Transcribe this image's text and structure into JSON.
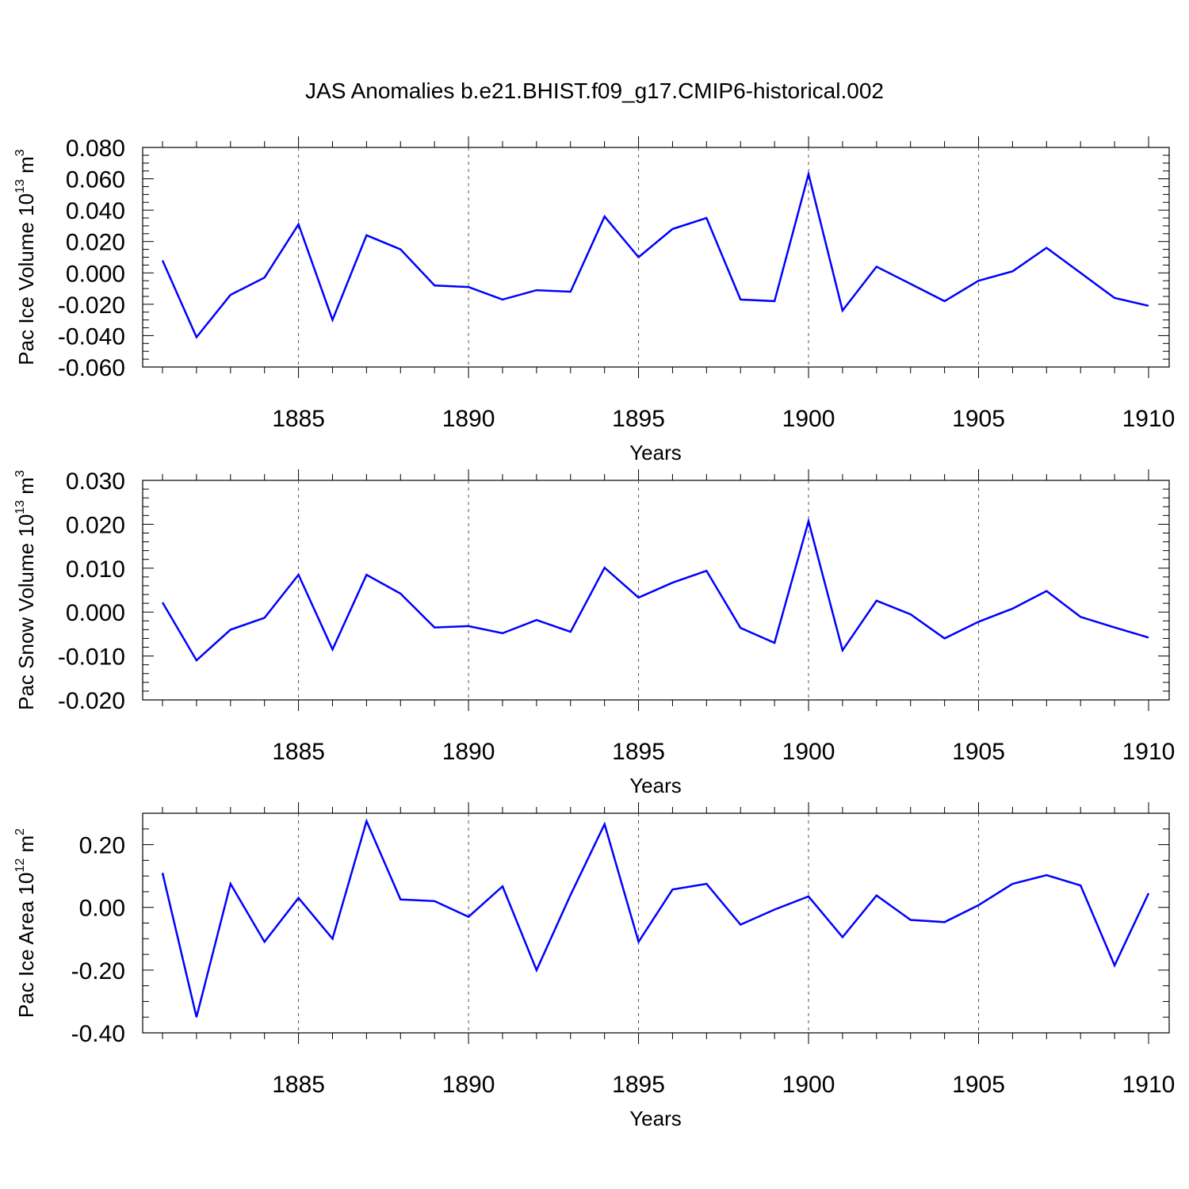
{
  "figure": {
    "title": "JAS Anomalies b.e21.BHIST.f09_g17.CMIP6-historical.002",
    "line_color": "#0000ff",
    "grid_color": "#555555"
  },
  "chart_data": [
    {
      "type": "line",
      "title": "JAS Anomalies b.e21.BHIST.f09_g17.CMIP6-historical.002",
      "xlabel": "Years",
      "ylabel": {
        "main": "Pac Ice Volume 10",
        "exp": "13",
        "unit": " m",
        "unit_exp": "3"
      },
      "xlim": [
        1881,
        1910
      ],
      "ylim": [
        -0.06,
        0.08
      ],
      "y_ticks": [
        -0.06,
        -0.04,
        -0.02,
        0.0,
        0.02,
        0.04,
        0.06,
        0.08
      ],
      "y_tick_labels": [
        "-0.060",
        "-0.040",
        "-0.020",
        "0.000",
        "0.020",
        "0.040",
        "0.060",
        "0.080"
      ],
      "y_minor_step": 0.005,
      "x_ticks": [
        1885,
        1890,
        1895,
        1900,
        1905,
        1910
      ],
      "x_tick_labels": [
        "1885",
        "1890",
        "1895",
        "1900",
        "1905",
        "1910"
      ],
      "grid": "vertical dashed at major x ticks",
      "x": [
        1881,
        1882,
        1883,
        1884,
        1885,
        1886,
        1887,
        1888,
        1889,
        1890,
        1891,
        1892,
        1893,
        1894,
        1895,
        1896,
        1897,
        1898,
        1899,
        1900,
        1901,
        1902,
        1903,
        1904,
        1905,
        1906,
        1907,
        1908,
        1909,
        1910
      ],
      "series": [
        {
          "values": [
            0.008,
            -0.041,
            -0.014,
            -0.003,
            0.031,
            -0.03,
            0.024,
            0.015,
            -0.008,
            -0.009,
            -0.017,
            -0.011,
            -0.012,
            0.036,
            0.01,
            0.028,
            0.035,
            -0.017,
            -0.018,
            0.063,
            -0.024,
            0.004,
            -0.007,
            -0.018,
            -0.005,
            0.001,
            0.016,
            0.0,
            -0.016,
            -0.021
          ]
        }
      ]
    },
    {
      "type": "line",
      "xlabel": "Years",
      "ylabel": {
        "main": "Pac Snow Volume 10",
        "exp": "13",
        "unit": " m",
        "unit_exp": "3"
      },
      "xlim": [
        1881,
        1910
      ],
      "ylim": [
        -0.02,
        0.03
      ],
      "y_ticks": [
        -0.02,
        -0.01,
        0.0,
        0.01,
        0.02,
        0.03
      ],
      "y_tick_labels": [
        "-0.020",
        "-0.010",
        "0.000",
        "0.010",
        "0.020",
        "0.030"
      ],
      "y_minor_step": 0.002,
      "x_ticks": [
        1885,
        1890,
        1895,
        1900,
        1905,
        1910
      ],
      "x_tick_labels": [
        "1885",
        "1890",
        "1895",
        "1900",
        "1905",
        "1910"
      ],
      "grid": "vertical dashed at major x ticks",
      "x": [
        1881,
        1882,
        1883,
        1884,
        1885,
        1886,
        1887,
        1888,
        1889,
        1890,
        1891,
        1892,
        1893,
        1894,
        1895,
        1896,
        1897,
        1898,
        1899,
        1900,
        1901,
        1902,
        1903,
        1904,
        1905,
        1906,
        1907,
        1908,
        1909,
        1910
      ],
      "series": [
        {
          "values": [
            0.0022,
            -0.011,
            -0.004,
            -0.0013,
            0.0085,
            -0.0085,
            0.0085,
            0.0042,
            -0.0035,
            -0.0032,
            -0.0048,
            -0.0018,
            -0.0045,
            0.0101,
            0.0033,
            0.0067,
            0.0094,
            -0.0036,
            -0.007,
            0.0207,
            -0.0087,
            0.0026,
            -0.0005,
            -0.006,
            -0.0022,
            0.0008,
            0.0048,
            -0.0011,
            -0.0035,
            -0.0058
          ]
        }
      ]
    },
    {
      "type": "line",
      "xlabel": "Years",
      "ylabel": {
        "main": "Pac Ice Area 10",
        "exp": "12",
        "unit": " m",
        "unit_exp": "2"
      },
      "xlim": [
        1881,
        1910
      ],
      "ylim": [
        -0.4,
        0.3
      ],
      "y_ticks": [
        -0.4,
        -0.2,
        0.0,
        0.2
      ],
      "y_tick_labels": [
        "-0.40",
        "-0.20",
        "0.00",
        "0.20"
      ],
      "y_minor_step": 0.05,
      "x_ticks": [
        1885,
        1890,
        1895,
        1900,
        1905,
        1910
      ],
      "x_tick_labels": [
        "1885",
        "1890",
        "1895",
        "1900",
        "1905",
        "1910"
      ],
      "grid": "vertical dashed at major x ticks",
      "x": [
        1881,
        1882,
        1883,
        1884,
        1885,
        1886,
        1887,
        1888,
        1889,
        1890,
        1891,
        1892,
        1893,
        1894,
        1895,
        1896,
        1897,
        1898,
        1899,
        1900,
        1901,
        1902,
        1903,
        1904,
        1905,
        1906,
        1907,
        1908,
        1909,
        1910
      ],
      "series": [
        {
          "values": [
            0.11,
            -0.35,
            0.075,
            -0.11,
            0.03,
            -0.1,
            0.275,
            0.025,
            0.02,
            -0.03,
            0.067,
            -0.2,
            0.04,
            0.265,
            -0.11,
            0.057,
            0.075,
            -0.055,
            -0.007,
            0.035,
            -0.095,
            0.038,
            -0.04,
            -0.047,
            0.007,
            0.075,
            0.103,
            0.07,
            -0.185,
            0.045
          ]
        }
      ]
    }
  ]
}
